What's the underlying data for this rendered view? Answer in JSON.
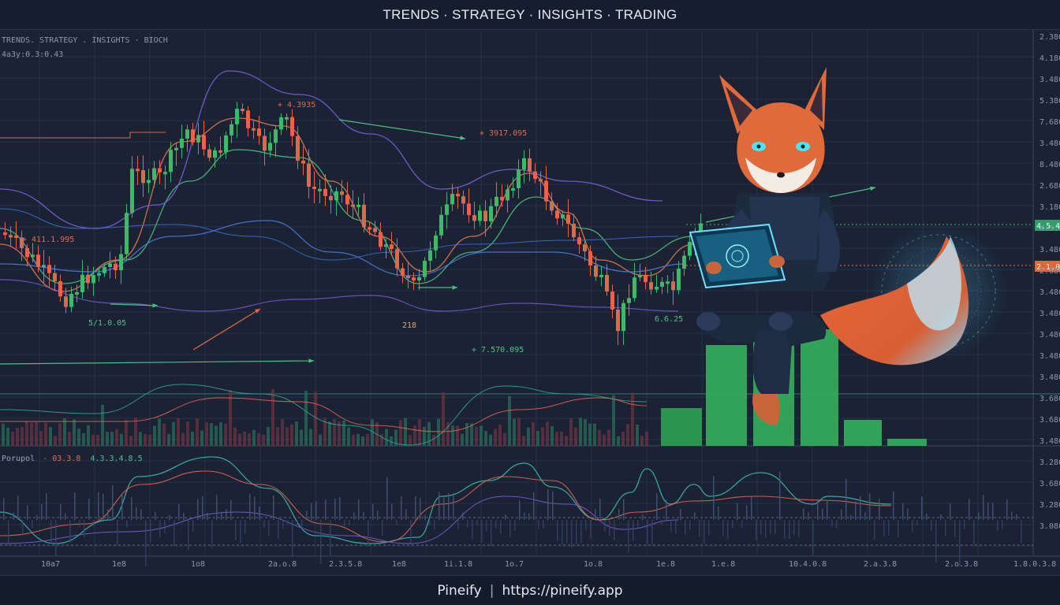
{
  "header": {
    "title": "TRENDS · STRATEGY · INSIGHTS · TRADING"
  },
  "chart": {
    "legend_line1": "TRENDS. STRATEGY . INSIGHTS · BIOCH",
    "legend_line2": "4a3y:0.3:0.43",
    "annotations": [
      {
        "text": "+ 4.3935",
        "color": "#e06c50"
      },
      {
        "text": "+ 3917.095",
        "color": "#e06c50"
      },
      {
        "text": "+ 411.1.995",
        "color": "#e06c50"
      },
      {
        "text": "5/1.0.05",
        "color": "#4fc38a"
      },
      {
        "text": "218",
        "color": "#e0a060"
      },
      {
        "text": "+ 7.570.095",
        "color": "#4fc38a"
      },
      {
        "text": "6.6.25",
        "color": "#4fc38a"
      }
    ],
    "price_axis": [
      "2.3800",
      "4.1800",
      "3.4800",
      "5.3800",
      "7.6800",
      "3.4800",
      "8.4800",
      "2.6800",
      "3.1800",
      "4.5.4.8",
      "3.4800",
      "2.6800",
      "3.4800",
      "3.4800",
      "3.4800",
      "3.4800",
      "3.4800",
      "3.6800",
      "3.6800",
      "3.4800",
      "3.2800",
      "3.6800",
      "3.2800",
      "3.0800"
    ],
    "price_tag_green": "4.5.4.8",
    "price_tag_orange": "2.1.0.3",
    "time_axis": [
      "10a7",
      "1e8",
      "1o8",
      "2a.o.8",
      "2.3.5.8",
      "1e8",
      "1i.1.8",
      "1o.7",
      "1o.8",
      "1e.8",
      "1.e.8",
      "10.4.0.8",
      "2.a.3.8",
      "2.o.3.8",
      "1.8.0.3.8"
    ],
    "indicator": {
      "name": "Porupol",
      "value1": "- 03.3.8",
      "value2": "4.3.3.4.8.5"
    },
    "colors": {
      "bull": "#3fb86a",
      "bear": "#e2664c",
      "ema_green": "#4cc07c",
      "ema_orange": "#e07a4c",
      "ema_purple": "#7a5fd8",
      "ema_blue": "#4a7ad8",
      "teal": "#39b5a8"
    }
  },
  "mascot": {
    "icon": "fox-mascot-icon",
    "description_icon": "tablet-hologram-icon"
  },
  "footer": {
    "brand": "Pineify",
    "separator": "|",
    "url": "https://pineify.app"
  }
}
